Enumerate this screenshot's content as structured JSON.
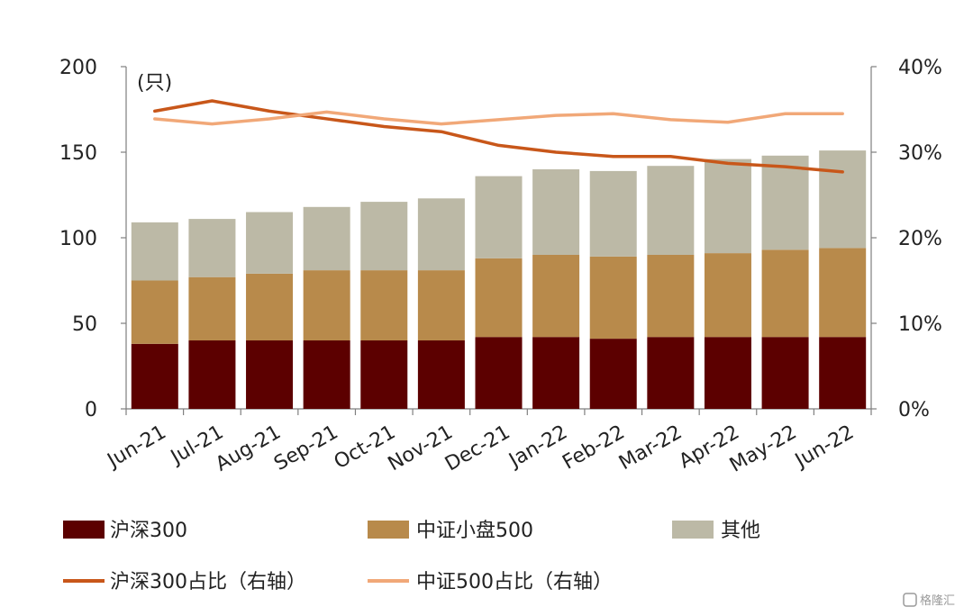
{
  "chart_data": {
    "type": "bar",
    "stacked": true,
    "unit_label": "(只)",
    "categories": [
      "Jun-21",
      "Jul-21",
      "Aug-21",
      "Sep-21",
      "Oct-21",
      "Nov-21",
      "Dec-21",
      "Jan-22",
      "Feb-22",
      "Mar-22",
      "Apr-22",
      "May-22",
      "Jun-22"
    ],
    "y_left": {
      "ticks": [
        "0",
        "50",
        "100",
        "150",
        "200"
      ],
      "range": [
        0,
        200
      ]
    },
    "y_right": {
      "ticks": [
        "0%",
        "10%",
        "20%",
        "30%",
        "40%"
      ],
      "range": [
        0,
        40
      ]
    },
    "series": [
      {
        "name": "沪深300",
        "kind": "bar",
        "axis": "left",
        "color": "#5c0000",
        "values": [
          38,
          40,
          40,
          40,
          40,
          40,
          42,
          42,
          41,
          42,
          42,
          42,
          42
        ]
      },
      {
        "name": "中证小盘500",
        "kind": "bar",
        "axis": "left",
        "color": "#b88a4b",
        "values": [
          37,
          37,
          39,
          41,
          41,
          41,
          46,
          48,
          48,
          48,
          49,
          51,
          52
        ]
      },
      {
        "name": "其他",
        "kind": "bar",
        "axis": "left",
        "color": "#bcb9a6",
        "values": [
          34,
          34,
          36,
          37,
          40,
          42,
          48,
          50,
          50,
          52,
          55,
          55,
          57
        ]
      },
      {
        "name": "沪深300占比（右轴）",
        "kind": "line",
        "axis": "right",
        "color": "#c8571a",
        "values": [
          34.8,
          36.0,
          34.8,
          33.9,
          33.0,
          32.4,
          30.8,
          30.0,
          29.5,
          29.5,
          28.7,
          28.3,
          27.7
        ]
      },
      {
        "name": "中证500占比（右轴）",
        "kind": "line",
        "axis": "right",
        "color": "#f1a878",
        "values": [
          33.9,
          33.3,
          33.9,
          34.7,
          33.9,
          33.3,
          33.8,
          34.3,
          34.5,
          33.8,
          33.5,
          34.5,
          34.5
        ]
      }
    ]
  },
  "watermark": "格隆汇"
}
